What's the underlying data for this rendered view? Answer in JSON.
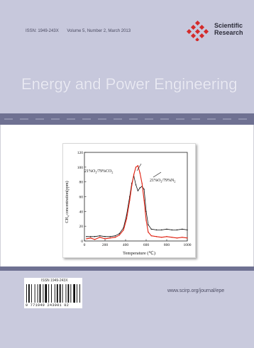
{
  "header": {
    "issn": "ISSN: 1949-243X",
    "volume_info": "Volume 5, Number 2, March 2013",
    "publisher_line1": "Scientific",
    "publisher_line2": "Research"
  },
  "journal_title": "Energy and Power Engineering",
  "footer": {
    "barcode_issn": "ISSN 1949-243X",
    "barcode_number": "9 771949 243001 02",
    "website": "www.scirp.org/journal/epe"
  },
  "colors": {
    "band": "#c7c8dc",
    "strip": "#6f7192",
    "series_co2": "#e02010",
    "series_n2": "#111111"
  },
  "chart_data": {
    "type": "line",
    "xlabel": "Temperature (℃)",
    "ylabel": "CH4 concentration(ppm)",
    "ylabel_main": "CH",
    "ylabel_sub": "4",
    "ylabel_rest": " concentration(ppm)",
    "xlim": [
      0,
      1000
    ],
    "ylim": [
      0,
      120
    ],
    "x_ticks": [
      0,
      200,
      400,
      600,
      800,
      1000
    ],
    "y_ticks": [
      0,
      20,
      40,
      60,
      80,
      100,
      120
    ],
    "series": [
      {
        "name": "21%O2/79%CO2",
        "label_main": "21%O",
        "label_sub1": "2",
        "label_mid": "/79%CO",
        "label_sub2": "2",
        "color": "#e02010",
        "x": [
          20,
          60,
          100,
          150,
          200,
          250,
          300,
          340,
          380,
          410,
          440,
          460,
          480,
          500,
          520,
          540,
          560,
          580,
          600,
          620,
          650,
          700,
          750,
          800,
          850,
          900,
          950,
          1000
        ],
        "y": [
          3,
          4,
          2,
          5,
          3,
          4,
          5,
          8,
          15,
          30,
          55,
          75,
          90,
          100,
          102,
          92,
          78,
          55,
          28,
          12,
          7,
          6,
          5,
          6,
          5,
          4,
          5,
          4
        ]
      },
      {
        "name": "21%O2/79%N2",
        "label_main": "21%O",
        "label_sub1": "2",
        "label_mid": "/79%N",
        "label_sub2": "2",
        "color": "#111111",
        "x": [
          20,
          60,
          100,
          150,
          200,
          250,
          300,
          340,
          380,
          410,
          440,
          460,
          480,
          500,
          520,
          540,
          560,
          580,
          600,
          620,
          650,
          700,
          750,
          800,
          850,
          900,
          950,
          1000
        ],
        "y": [
          6,
          6,
          6,
          7,
          6,
          6,
          7,
          10,
          18,
          35,
          60,
          78,
          88,
          76,
          68,
          72,
          74,
          70,
          40,
          22,
          16,
          15,
          15,
          16,
          15,
          15,
          16,
          15
        ]
      }
    ]
  }
}
